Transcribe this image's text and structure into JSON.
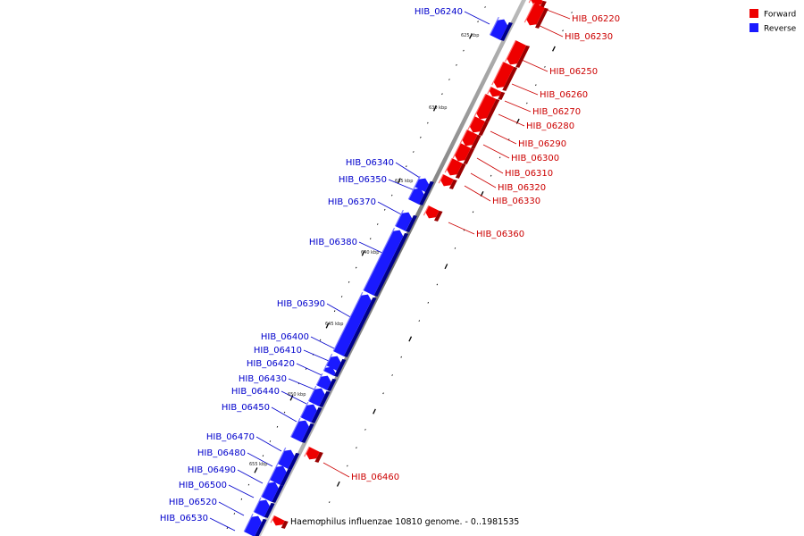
{
  "legend": [
    {
      "label": "Forward",
      "color": "#ee0000"
    },
    {
      "label": "Reverse",
      "color": "#1a1aff"
    }
  ],
  "caption": "Haemophilus influenzae 10810 genome. - 0..1981535",
  "colors": {
    "forward": "#ee0000",
    "forward_dark": "#990000",
    "forward_light": "#ff7070",
    "reverse": "#1a1aff",
    "reverse_dark": "#00008a",
    "reverse_light": "#7a7aff",
    "forward_label": "#cc0000",
    "reverse_label": "#0000cc",
    "backbone": "#888888"
  },
  "axis_labels": [
    "625 kbp",
    "630 kbp",
    "635 kbp",
    "640 kbp",
    "645 kbp",
    "650 kbp",
    "655 kbp"
  ],
  "forward_genes": [
    {
      "name": "HIB_06220"
    },
    {
      "name": "HIB_06230"
    },
    {
      "name": "HIB_06250"
    },
    {
      "name": "HIB_06260"
    },
    {
      "name": "HIB_06270"
    },
    {
      "name": "HIB_06280"
    },
    {
      "name": "HIB_06290"
    },
    {
      "name": "HIB_06300"
    },
    {
      "name": "HIB_06310"
    },
    {
      "name": "HIB_06320"
    },
    {
      "name": "HIB_06330"
    },
    {
      "name": "HIB_06360"
    },
    {
      "name": "HIB_06460"
    },
    {
      "name": ""
    }
  ],
  "reverse_genes": [
    {
      "name": "HIB_06240"
    },
    {
      "name": "HIB_06340"
    },
    {
      "name": "HIB_06350"
    },
    {
      "name": "HIB_06370"
    },
    {
      "name": "HIB_06380"
    },
    {
      "name": "HIB_06390"
    },
    {
      "name": "HIB_06400"
    },
    {
      "name": "HIB_06410"
    },
    {
      "name": "HIB_06420"
    },
    {
      "name": "HIB_06430"
    },
    {
      "name": "HIB_06440"
    },
    {
      "name": "HIB_06450"
    },
    {
      "name": "HIB_06470"
    },
    {
      "name": "HIB_06480"
    },
    {
      "name": "HIB_06490"
    },
    {
      "name": "HIB_06500"
    },
    {
      "name": "HIB_06520"
    },
    {
      "name": "HIB_06530"
    },
    {
      "name": ""
    }
  ]
}
